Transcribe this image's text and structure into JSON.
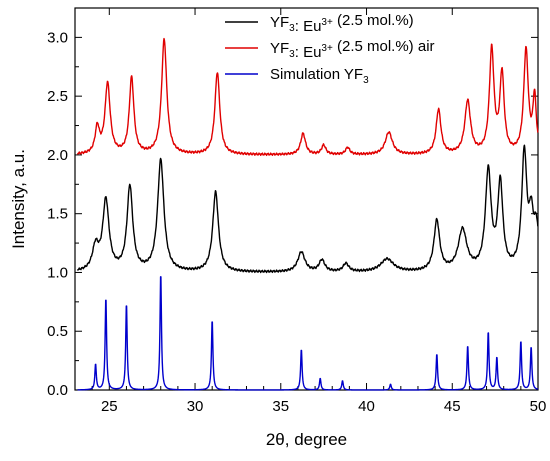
{
  "chart_data": {
    "type": "line",
    "title": "",
    "xlabel": "2θ, degree",
    "ylabel": "Intensity, a.u.",
    "xlim": [
      23,
      50
    ],
    "ylim": [
      0,
      3.25
    ],
    "x_ticks": [
      "25",
      "30",
      "35",
      "40",
      "45",
      "50"
    ],
    "y_ticks": [
      "0.0",
      "0.5",
      "1.0",
      "1.5",
      "2.0",
      "2.5",
      "3.0"
    ],
    "grid": false,
    "legend_position": "top-right",
    "legend": [
      {
        "prefix": "YF",
        "sub": "3",
        "mid": ": Eu",
        "sup": "3+",
        "suffix": " (2.5 mol.%)",
        "color": "#000000"
      },
      {
        "prefix": "YF",
        "sub": "3",
        "mid": ": Eu",
        "sup": "3+",
        "suffix": " (2.5 mol.%) air",
        "color": "#e00000"
      },
      {
        "prefix": "Simulation YF",
        "sub": "3",
        "mid": "",
        "sup": "",
        "suffix": "",
        "color": "#0000cc"
      }
    ],
    "series": [
      {
        "name": "YF3: Eu3+ (2.5 mol.%)",
        "color": "#000000",
        "baseline": 1.0,
        "peaks": [
          [
            24.2,
            0.2,
            0.22
          ],
          [
            24.8,
            0.6,
            0.22
          ],
          [
            26.2,
            0.72,
            0.2
          ],
          [
            28.0,
            0.95,
            0.22
          ],
          [
            31.2,
            0.68,
            0.2
          ],
          [
            36.2,
            0.17,
            0.25
          ],
          [
            37.4,
            0.1,
            0.2
          ],
          [
            38.8,
            0.07,
            0.2
          ],
          [
            41.2,
            0.11,
            0.45
          ],
          [
            44.1,
            0.43,
            0.2
          ],
          [
            45.6,
            0.35,
            0.3
          ],
          [
            47.1,
            0.84,
            0.2
          ],
          [
            47.8,
            0.73,
            0.18
          ],
          [
            49.2,
            0.99,
            0.18
          ],
          [
            49.6,
            0.38,
            0.15
          ],
          [
            49.9,
            0.35,
            0.18
          ]
        ]
      },
      {
        "name": "YF3: Eu3+ (2.5 mol.%) air",
        "color": "#e00000",
        "baseline": 2.0,
        "peaks": [
          [
            24.3,
            0.22,
            0.15
          ],
          [
            24.9,
            0.6,
            0.18
          ],
          [
            26.3,
            0.65,
            0.16
          ],
          [
            28.2,
            0.98,
            0.18
          ],
          [
            31.3,
            0.7,
            0.17
          ],
          [
            36.3,
            0.18,
            0.17
          ],
          [
            37.5,
            0.08,
            0.15
          ],
          [
            38.9,
            0.06,
            0.15
          ],
          [
            41.3,
            0.19,
            0.25
          ],
          [
            44.2,
            0.38,
            0.17
          ],
          [
            45.9,
            0.45,
            0.2
          ],
          [
            47.3,
            0.88,
            0.16
          ],
          [
            47.9,
            0.67,
            0.15
          ],
          [
            49.3,
            0.88,
            0.16
          ],
          [
            49.8,
            0.47,
            0.12
          ]
        ]
      },
      {
        "name": "Simulation YF3",
        "color": "#0000cc",
        "baseline": 0.0,
        "peaks": [
          [
            24.2,
            0.22,
            0.05
          ],
          [
            24.8,
            0.79,
            0.05
          ],
          [
            26.0,
            0.74,
            0.05
          ],
          [
            28.0,
            1.0,
            0.05
          ],
          [
            31.0,
            0.6,
            0.05
          ],
          [
            36.2,
            0.35,
            0.05
          ],
          [
            37.3,
            0.1,
            0.05
          ],
          [
            38.6,
            0.08,
            0.05
          ],
          [
            41.4,
            0.05,
            0.05
          ],
          [
            44.1,
            0.31,
            0.05
          ],
          [
            45.9,
            0.38,
            0.05
          ],
          [
            47.1,
            0.5,
            0.05
          ],
          [
            47.6,
            0.28,
            0.05
          ],
          [
            49.0,
            0.42,
            0.05
          ],
          [
            49.6,
            0.37,
            0.05
          ]
        ]
      }
    ]
  }
}
